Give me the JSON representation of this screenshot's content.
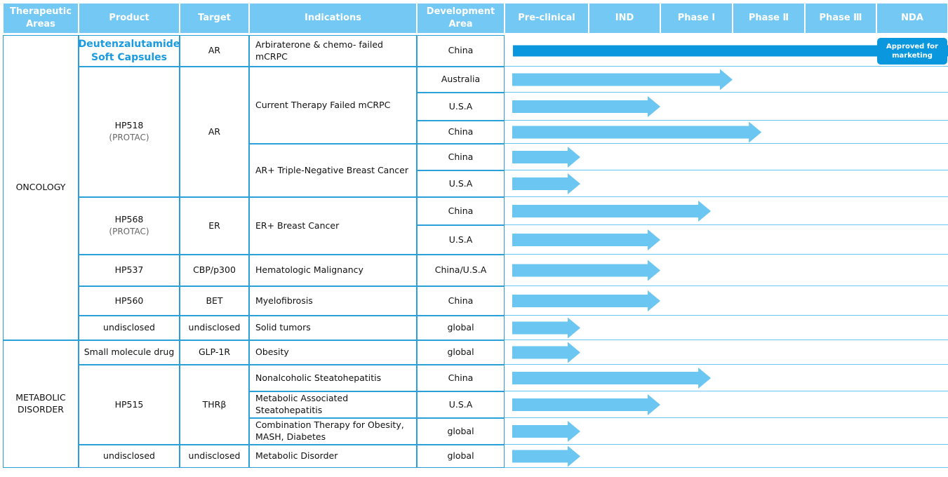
{
  "header": [
    "Therapeutic Areas",
    "Product",
    "Target",
    "Indications",
    "Development Area",
    "Pre-clinical",
    "IND",
    "Phase Ⅰ",
    "Phase Ⅱ",
    "Phase Ⅲ",
    "NDA"
  ],
  "areas": [
    {
      "name": "ONCOLOGY",
      "products": [
        {
          "name": "Deutenzalutamide Soft Capsules",
          "target": "AR",
          "indications": [
            {
              "name": "Arbiraterone & chemo- failed mCRPC",
              "regions": [
                {
                  "name": "China",
                  "progress": 6,
                  "status": "Approved for marketing"
                }
              ]
            }
          ]
        },
        {
          "name": "HP518",
          "note": "(PROTAC)",
          "target": "AR",
          "indications": [
            {
              "name": "Current Therapy Failed mCRPC",
              "regions": [
                {
                  "name": "Australia",
                  "progress": 3
                },
                {
                  "name": "U.S.A",
                  "progress": 2
                },
                {
                  "name": "China",
                  "progress": 3.4
                }
              ]
            },
            {
              "name": "AR+ Triple-Negative Breast Cancer",
              "regions": [
                {
                  "name": "China",
                  "progress": 0.9
                },
                {
                  "name": "U.S.A",
                  "progress": 0.9
                }
              ]
            }
          ]
        },
        {
          "name": "HP568",
          "note": "(PROTAC)",
          "target": "ER",
          "indications": [
            {
              "name": "ER+ Breast Cancer",
              "regions": [
                {
                  "name": "China",
                  "progress": 2.7
                },
                {
                  "name": "U.S.A",
                  "progress": 2
                }
              ]
            }
          ]
        },
        {
          "name": "HP537",
          "target": "CBP/p300",
          "indications": [
            {
              "name": "Hematologic Malignancy",
              "regions": [
                {
                  "name": "China/U.S.A",
                  "progress": 2
                }
              ]
            }
          ]
        },
        {
          "name": "HP560",
          "target": "BET",
          "indications": [
            {
              "name": "Myelofibrosis",
              "regions": [
                {
                  "name": "China",
                  "progress": 2
                }
              ]
            }
          ]
        },
        {
          "name": "undisclosed",
          "target": "undisclosed",
          "indications": [
            {
              "name": "Solid tumors",
              "regions": [
                {
                  "name": "global",
                  "progress": 0.9
                }
              ]
            }
          ]
        }
      ]
    },
    {
      "name": "METABOLIC DISORDER",
      "products": [
        {
          "name": "Small molecule drug",
          "target": "GLP-1R",
          "indications": [
            {
              "name": "Obesity",
              "regions": [
                {
                  "name": "global",
                  "progress": 0.9
                }
              ]
            }
          ]
        },
        {
          "name": "HP515",
          "target": "THRβ",
          "indications": [
            {
              "name": "Nonalcoholic Steatohepatitis",
              "regions": [
                {
                  "name": "China",
                  "progress": 2.7
                }
              ]
            },
            {
              "name": "Metabolic Associated Steatohepatitis",
              "regions": [
                {
                  "name": "U.S.A",
                  "progress": 2
                }
              ]
            },
            {
              "name": "Combination Therapy for Obesity, MASH, Diabetes",
              "regions": [
                {
                  "name": "global",
                  "progress": 0.9
                }
              ]
            }
          ]
        },
        {
          "name": "undisclosed",
          "target": "undisclosed",
          "indications": [
            {
              "name": "Metabolic Disorder",
              "regions": [
                {
                  "name": "global",
                  "progress": 0.9
                }
              ]
            }
          ]
        }
      ]
    }
  ]
}
